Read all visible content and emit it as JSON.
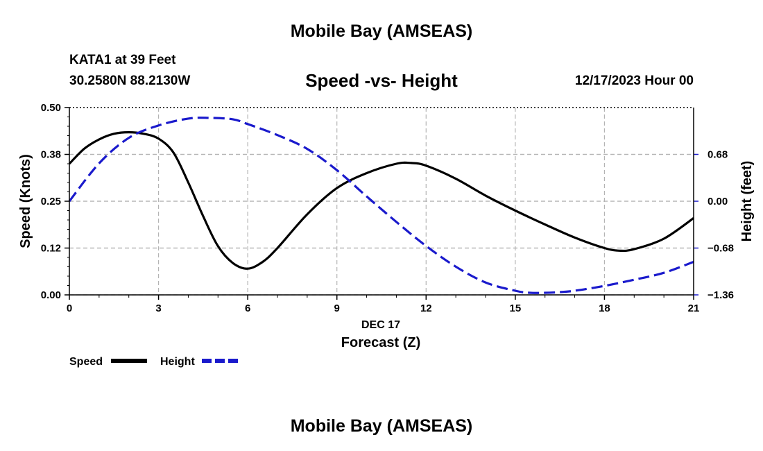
{
  "header": {
    "top_title": "Mobile Bay (AMSEAS)",
    "station": "KATA1 at 39 Feet",
    "coords": "30.2580N  88.2130W",
    "chart_title": "Speed -vs- Height",
    "date_label": "12/17/2023 Hour 00"
  },
  "footer": {
    "bottom_title": "Mobile Bay (AMSEAS)"
  },
  "colors": {
    "speed": "#000000",
    "height": "#1a1acc",
    "grid": "#b4b4b4"
  },
  "chart_data": {
    "type": "line",
    "title": "Speed -vs- Height",
    "xlabel": "Forecast (Z)",
    "xsublabel": "DEC 17",
    "ylabel": "Speed (Knots)",
    "y2label": "Height (feet)",
    "xlim": [
      0,
      21
    ],
    "ylim": [
      0,
      0.5
    ],
    "y2lim": [
      -1.36,
      1.36
    ],
    "xticks": [
      0,
      3,
      6,
      9,
      12,
      15,
      18,
      21
    ],
    "xtick_labels": [
      "0",
      "3",
      "6",
      "9",
      "12",
      "15",
      "18",
      "21"
    ],
    "yticks": [
      0,
      0.125,
      0.25,
      0.375,
      0.5
    ],
    "ytick_labels": [
      "0.00",
      "0.12",
      "0.25",
      "0.38",
      "0.50"
    ],
    "y2ticks": [
      -1.36,
      -0.68,
      0,
      0.68
    ],
    "y2tick_labels": [
      "−1.36",
      "−0.68",
      "0.00",
      "0.68"
    ],
    "grid": true,
    "legend": {
      "placement": "bottom-left",
      "entries": [
        "Speed",
        "Height"
      ]
    },
    "series": [
      {
        "name": "Speed",
        "axis": "left",
        "style": "solid",
        "x": [
          0,
          0.5,
          1,
          1.5,
          2,
          2.5,
          3,
          3.5,
          4,
          4.5,
          5,
          5.5,
          6,
          6.5,
          7,
          8,
          9,
          10,
          11,
          11.5,
          12,
          13,
          14,
          15,
          16,
          17,
          18,
          18.5,
          19,
          20,
          21
        ],
        "values": [
          0.35,
          0.39,
          0.415,
          0.43,
          0.434,
          0.43,
          0.417,
          0.38,
          0.3,
          0.21,
          0.13,
          0.085,
          0.07,
          0.088,
          0.125,
          0.215,
          0.285,
          0.325,
          0.35,
          0.352,
          0.345,
          0.31,
          0.265,
          0.225,
          0.188,
          0.153,
          0.125,
          0.118,
          0.122,
          0.15,
          0.205
        ]
      },
      {
        "name": "Height",
        "axis": "right",
        "style": "dashed",
        "x": [
          0,
          1,
          2,
          3,
          4,
          4.7,
          5.5,
          6,
          7,
          8,
          9,
          10,
          11,
          12,
          13,
          14,
          15,
          15.5,
          16,
          16.5,
          17,
          18,
          19,
          20,
          21
        ],
        "values": [
          0.0,
          0.55,
          0.92,
          1.1,
          1.2,
          1.21,
          1.19,
          1.12,
          0.96,
          0.76,
          0.45,
          0.07,
          -0.3,
          -0.65,
          -0.95,
          -1.18,
          -1.3,
          -1.33,
          -1.33,
          -1.32,
          -1.3,
          -1.23,
          -1.14,
          -1.04,
          -0.88
        ]
      }
    ]
  }
}
